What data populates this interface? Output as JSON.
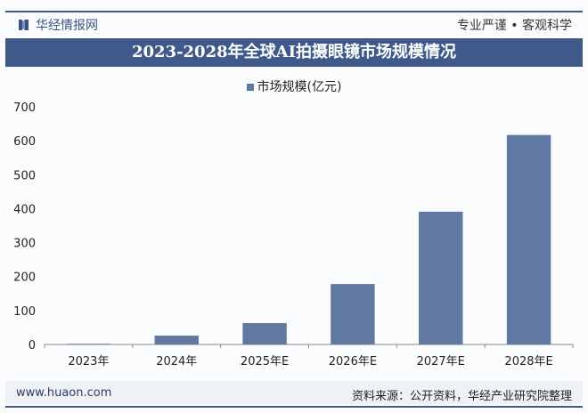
{
  "header": {
    "brand": "华经情报网",
    "slogan": "专业严谨 • 客观科学"
  },
  "footer": {
    "site": "www.huaon.com",
    "source": "资料来源：公开资料，华经产业研究院整理"
  },
  "chart_data": {
    "type": "bar",
    "title": "2023-2028年全球AI拍摄眼镜市场规模情况",
    "categories": [
      "2023年",
      "2024年",
      "2025年E",
      "2026年E",
      "2027年E",
      "2028年E"
    ],
    "series": [
      {
        "name": "市场规模(亿元)",
        "values": [
          2,
          26,
          63,
          178,
          391,
          617
        ],
        "color": "#5f79a3"
      }
    ],
    "ylim": [
      0,
      700
    ],
    "yticks": [
      0,
      100,
      200,
      300,
      400,
      500,
      600,
      700
    ],
    "grid": false,
    "legend": "top-center"
  }
}
